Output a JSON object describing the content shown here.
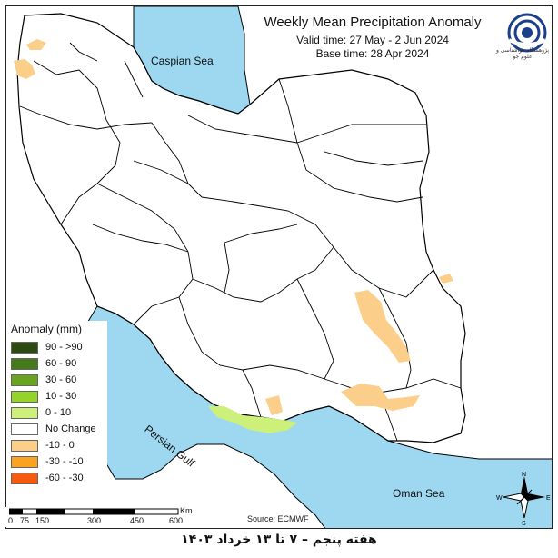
{
  "title": "Weekly Mean Precipitation Anomaly",
  "valid_time": "Valid time: 27 May - 2 Jun 2024",
  "base_time": "Base time: 28 Apr 2024",
  "seas": {
    "caspian": "Caspian Sea",
    "persian_gulf": "Persian Gulf",
    "oman": "Oman Sea"
  },
  "legend": {
    "title": "Anomaly (mm)",
    "items": [
      {
        "label": "90 - >90",
        "color": "#2d4a12"
      },
      {
        "label": "60 - 90",
        "color": "#447a1c"
      },
      {
        "label": "30 - 60",
        "color": "#6aa321"
      },
      {
        "label": "10 - 30",
        "color": "#94d42a"
      },
      {
        "label": "0 - 10",
        "color": "#cdf07a"
      },
      {
        "label": "No Change",
        "color": "#ffffff"
      },
      {
        "label": "-10 - 0",
        "color": "#fbcf8a"
      },
      {
        "label": "-30 - -10",
        "color": "#fba320"
      },
      {
        "label": "-60 - -30",
        "color": "#f55a10"
      }
    ]
  },
  "scale": {
    "ticks": [
      "0",
      "75",
      "150",
      "300",
      "450",
      "600"
    ],
    "unit": "Km"
  },
  "source": "Source: ECMWF",
  "compass": {
    "n": "N",
    "s": "S",
    "e": "E",
    "w": "W"
  },
  "logo": {
    "text": "پژوهشگاه هواشناسی و علوم جو"
  },
  "footer": "هفته پنجم – ۷ تا ۱۳ خرداد ۱۴۰۳",
  "colors": {
    "sea": "#9ed8f0",
    "border": "#000000",
    "negative_light": "#fbcf8a",
    "positive_light": "#cdf07a"
  }
}
